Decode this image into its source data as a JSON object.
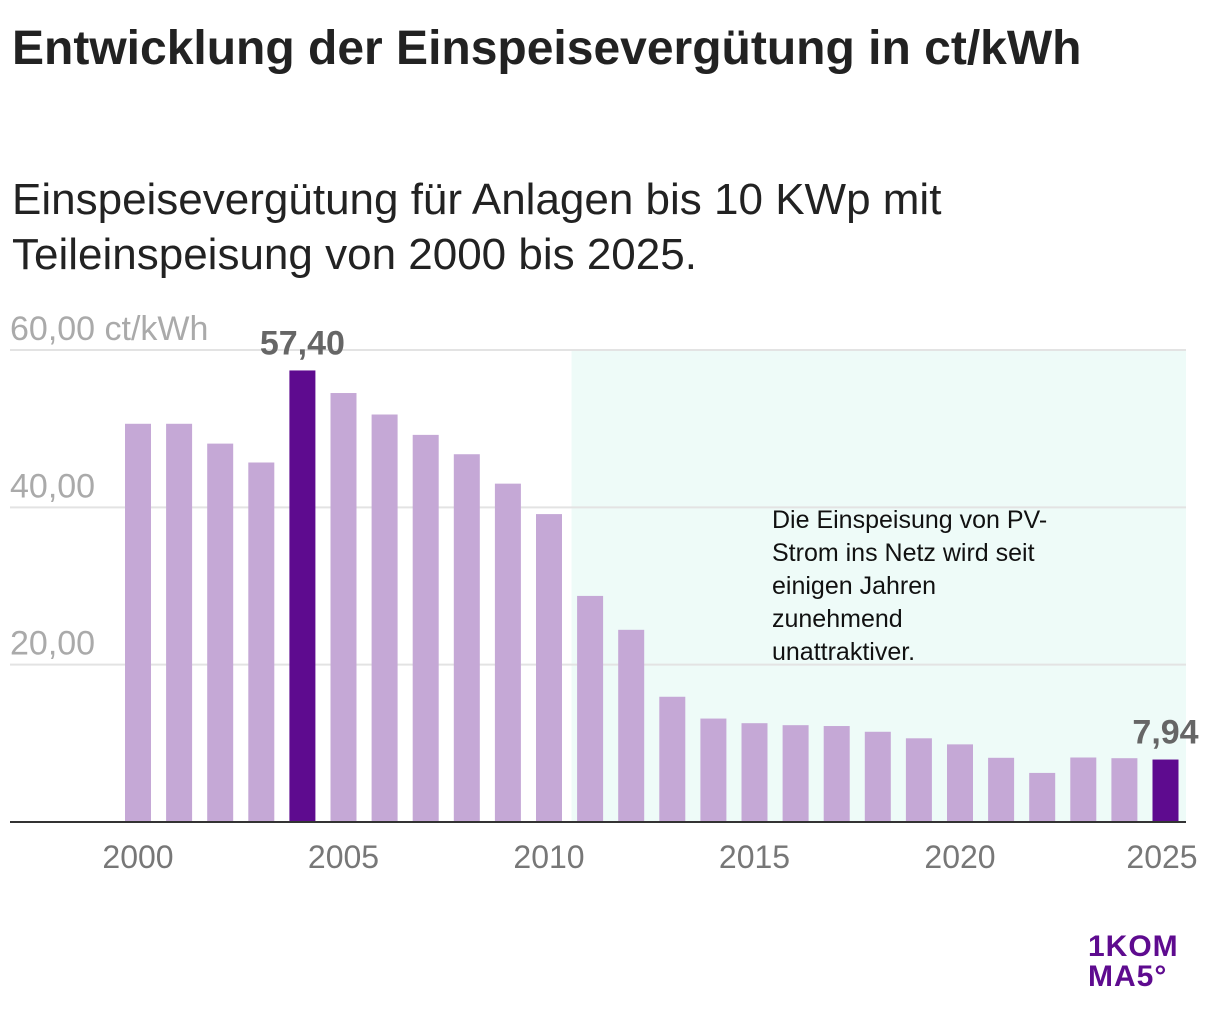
{
  "title": "Entwicklung der Einspeisevergütung in ct/kWh",
  "subtitle": "Einspeisevergütung für Anlagen bis 10 KWp mit Teileinspeisung von 2000 bis 2025.",
  "annotation": {
    "lines": [
      "Die Einspeisung von PV-",
      "Strom ins Netz wird seit",
      "einigen Jahren",
      "zunehmend",
      "unattraktiver."
    ],
    "shaded_from_year": 2011,
    "shaded_to_year": 2025,
    "shade_color": "#eefbf8"
  },
  "logo": {
    "line1": "1KOM",
    "line2": "MA5°"
  },
  "colors": {
    "bar": "#c5a8d6",
    "highlight": "#5e0b8f",
    "grid": "#e3e3e3",
    "axis": "#333333"
  },
  "chart_data": {
    "type": "bar",
    "x": [
      2000,
      2001,
      2002,
      2003,
      2004,
      2005,
      2006,
      2007,
      2008,
      2009,
      2010,
      2011,
      2012,
      2013,
      2014,
      2015,
      2016,
      2017,
      2018,
      2019,
      2020,
      2021,
      2022,
      2023,
      2024,
      2025
    ],
    "values": [
      50.62,
      50.62,
      48.1,
      45.7,
      57.4,
      54.53,
      51.8,
      49.21,
      46.75,
      43.01,
      39.14,
      28.74,
      24.43,
      15.92,
      13.15,
      12.56,
      12.31,
      12.2,
      11.47,
      10.64,
      9.87,
      8.16,
      6.24,
      8.2,
      8.11,
      7.94
    ],
    "highlight": [
      2004,
      2025
    ],
    "data_labels": [
      {
        "x": 2004,
        "text": "57,40"
      },
      {
        "x": 2025,
        "text": "7,94"
      }
    ],
    "x_ticks": [
      "2000",
      "2005",
      "2010",
      "2015",
      "2020",
      "2025"
    ],
    "y_ticks": [
      {
        "value": 60,
        "label": "60,00 ct/kWh"
      },
      {
        "value": 40,
        "label": "40,00"
      },
      {
        "value": 20,
        "label": "20,00"
      }
    ],
    "ylim": [
      0,
      60
    ],
    "grid": true
  }
}
